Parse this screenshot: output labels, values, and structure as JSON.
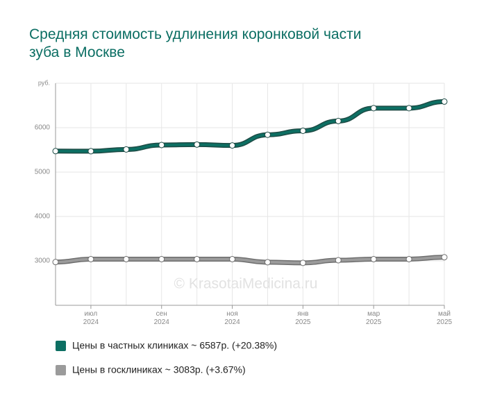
{
  "chart_data": {
    "type": "line",
    "title": "Средняя стоимость удлинения коронковой части зуба в Москве",
    "categories": [
      null,
      "июл 2024",
      null,
      "сен 2024",
      null,
      "ноя 2024",
      null,
      "янв 2025",
      null,
      "мар 2025",
      null,
      "май 2025"
    ],
    "series": [
      {
        "name": "Цены в частных клиниках ~ 6587р. (+20.38%)",
        "color": "#0d6f63",
        "values": [
          5472,
          5470,
          5510,
          5610,
          5620,
          5600,
          5840,
          5930,
          6150,
          6440,
          6440,
          6587
        ]
      },
      {
        "name": "Цены в госклиниках ~ 3083р. (+3.67%)",
        "color": "#9b9b9b",
        "values": [
          2974,
          3040,
          3040,
          3040,
          3040,
          3040,
          2970,
          2955,
          3015,
          3040,
          3040,
          3083
        ]
      }
    ],
    "ylim": [
      2000,
      7000
    ],
    "yticks": [
      3000,
      4000,
      5000,
      6000,
      {
        "value": 7000,
        "label": "руб."
      }
    ],
    "grid": true,
    "annotation": "© KrasotaiMedicina.ru"
  }
}
